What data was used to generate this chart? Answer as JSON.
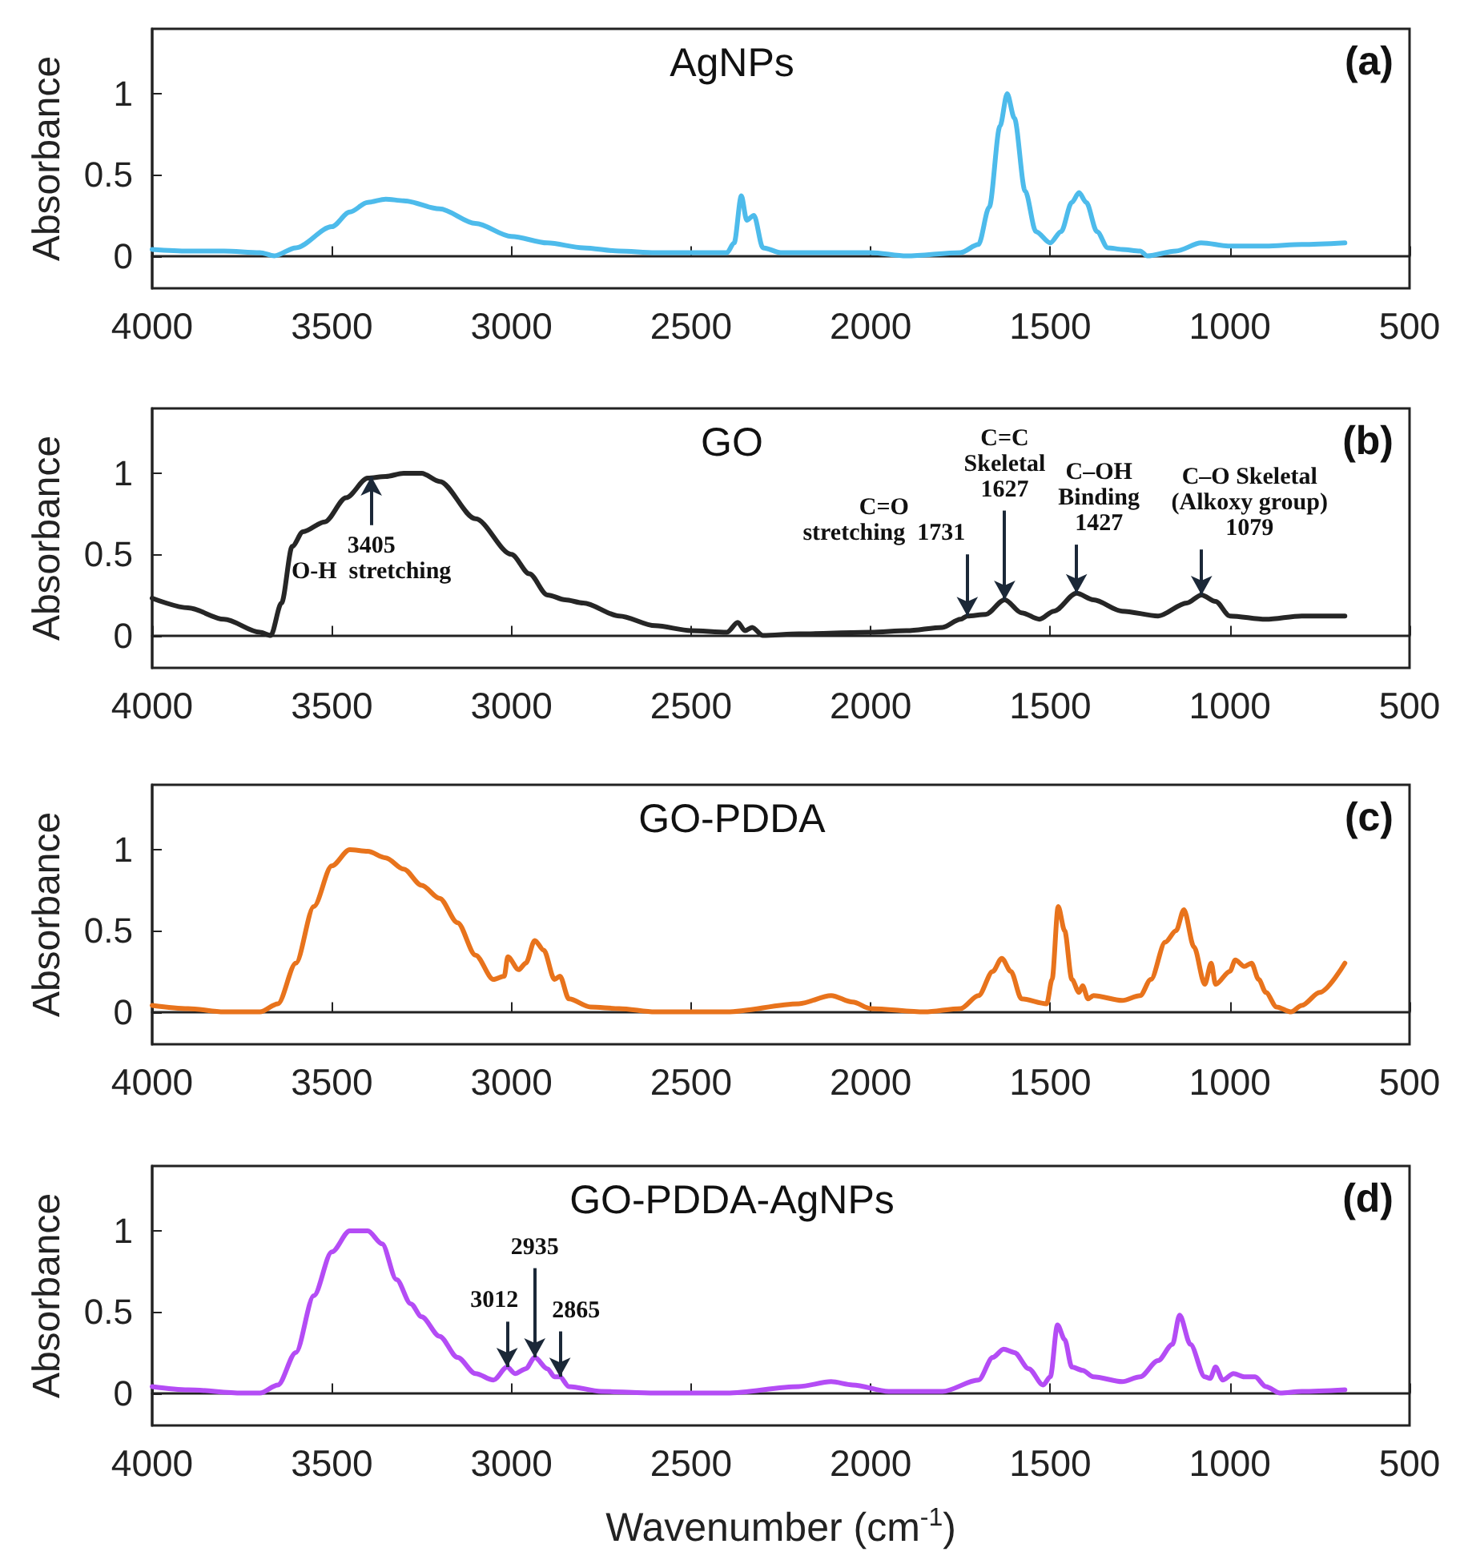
{
  "chart_data": [
    {
      "type": "line",
      "title": "AgNPs",
      "ylabel": "Absorbance",
      "annotations": [
        "(a)"
      ],
      "xlim": [
        4000,
        500
      ],
      "xticks": [
        4000,
        3500,
        3000,
        2500,
        2000,
        1500,
        1000,
        500
      ],
      "ylim": [
        -0.2,
        1.4
      ],
      "yticks": [
        0,
        0.5,
        1
      ],
      "x": [
        4000,
        3900,
        3800,
        3700,
        3660,
        3600,
        3500,
        3450,
        3400,
        3350,
        3300,
        3200,
        3100,
        3000,
        2900,
        2800,
        2700,
        2600,
        2400,
        2380,
        2360,
        2345,
        2325,
        2300,
        2250,
        2000,
        1900,
        1750,
        1700,
        1670,
        1640,
        1620,
        1600,
        1570,
        1540,
        1500,
        1470,
        1440,
        1420,
        1400,
        1370,
        1340,
        1300,
        1250,
        1230,
        1150,
        1080,
        1000,
        900,
        800,
        680
      ],
      "series": [
        {
          "color": "#4dbbeb",
          "values": [
            0.04,
            0.03,
            0.03,
            0.02,
            0.0,
            0.05,
            0.18,
            0.27,
            0.33,
            0.35,
            0.34,
            0.29,
            0.2,
            0.12,
            0.08,
            0.05,
            0.03,
            0.02,
            0.02,
            0.08,
            0.37,
            0.22,
            0.25,
            0.05,
            0.02,
            0.02,
            0.0,
            0.02,
            0.07,
            0.3,
            0.8,
            1.0,
            0.85,
            0.4,
            0.15,
            0.08,
            0.15,
            0.33,
            0.39,
            0.33,
            0.15,
            0.05,
            0.04,
            0.03,
            0.0,
            0.03,
            0.08,
            0.06,
            0.06,
            0.07,
            0.08
          ]
        }
      ]
    },
    {
      "type": "line",
      "title": "GO",
      "ylabel": "Absorbance",
      "annotations": [
        "(b)",
        {
          "text": "3405\nO-H  stretching",
          "x": 3390,
          "y": 0.98
        },
        {
          "text": "C=O\nstretching  1731",
          "x": 1731,
          "y": 0.12
        },
        {
          "text": "C=C\nSkeletal\n1627",
          "x": 1627,
          "y": 0.22
        },
        {
          "text": "C–OH\nBinding\n1427",
          "x": 1427,
          "y": 0.26
        },
        {
          "text": "C–O Skeletal\n(Alkoxy group)\n1079",
          "x": 1079,
          "y": 0.25
        }
      ],
      "xlim": [
        4000,
        500
      ],
      "xticks": [
        4000,
        3500,
        3000,
        2500,
        2000,
        1500,
        1000,
        500
      ],
      "ylim": [
        -0.2,
        1.4
      ],
      "yticks": [
        0,
        0.5,
        1
      ],
      "x": [
        4000,
        3900,
        3800,
        3700,
        3670,
        3640,
        3610,
        3580,
        3520,
        3460,
        3400,
        3350,
        3300,
        3250,
        3200,
        3100,
        3000,
        2950,
        2900,
        2850,
        2800,
        2700,
        2600,
        2500,
        2400,
        2370,
        2350,
        2330,
        2300,
        2200,
        2000,
        1900,
        1800,
        1750,
        1731,
        1680,
        1627,
        1580,
        1530,
        1490,
        1427,
        1380,
        1300,
        1200,
        1120,
        1079,
        1040,
        1000,
        900,
        800,
        680
      ],
      "series": [
        {
          "color": "#262626",
          "values": [
            0.23,
            0.17,
            0.1,
            0.02,
            0.0,
            0.2,
            0.55,
            0.64,
            0.7,
            0.85,
            0.97,
            0.98,
            1.0,
            1.0,
            0.95,
            0.72,
            0.5,
            0.38,
            0.25,
            0.22,
            0.2,
            0.12,
            0.06,
            0.03,
            0.02,
            0.08,
            0.03,
            0.05,
            0.0,
            0.01,
            0.02,
            0.03,
            0.05,
            0.1,
            0.12,
            0.13,
            0.22,
            0.14,
            0.1,
            0.15,
            0.26,
            0.22,
            0.15,
            0.12,
            0.2,
            0.25,
            0.21,
            0.12,
            0.1,
            0.12,
            0.12
          ]
        }
      ]
    },
    {
      "type": "line",
      "title": "GO-PDDA",
      "ylabel": "Absorbance",
      "annotations": [
        "(c)"
      ],
      "xlim": [
        4000,
        500
      ],
      "xticks": [
        4000,
        3500,
        3000,
        2500,
        2000,
        1500,
        1000,
        500
      ],
      "ylim": [
        -0.2,
        1.4
      ],
      "yticks": [
        0,
        0.5,
        1
      ],
      "x": [
        4000,
        3900,
        3800,
        3700,
        3650,
        3600,
        3550,
        3500,
        3450,
        3400,
        3350,
        3300,
        3250,
        3200,
        3150,
        3100,
        3050,
        3020,
        3010,
        2980,
        2960,
        2935,
        2910,
        2880,
        2865,
        2840,
        2780,
        2700,
        2600,
        2400,
        2200,
        2110,
        2050,
        2000,
        1850,
        1750,
        1700,
        1660,
        1635,
        1610,
        1580,
        1510,
        1495,
        1478,
        1460,
        1440,
        1420,
        1410,
        1395,
        1380,
        1300,
        1250,
        1220,
        1180,
        1150,
        1128,
        1100,
        1070,
        1052,
        1040,
        1000,
        985,
        960,
        940,
        920,
        900,
        870,
        830,
        800,
        750,
        680
      ],
      "series": [
        {
          "color": "#e8731c",
          "values": [
            0.04,
            0.02,
            0.0,
            0.0,
            0.05,
            0.3,
            0.65,
            0.9,
            1.0,
            0.99,
            0.95,
            0.88,
            0.78,
            0.7,
            0.55,
            0.35,
            0.2,
            0.22,
            0.34,
            0.26,
            0.3,
            0.44,
            0.38,
            0.2,
            0.22,
            0.08,
            0.03,
            0.02,
            0.0,
            0.0,
            0.05,
            0.1,
            0.06,
            0.02,
            0.0,
            0.02,
            0.1,
            0.25,
            0.33,
            0.25,
            0.08,
            0.05,
            0.2,
            0.65,
            0.5,
            0.2,
            0.12,
            0.16,
            0.08,
            0.1,
            0.07,
            0.1,
            0.2,
            0.43,
            0.5,
            0.63,
            0.4,
            0.17,
            0.3,
            0.17,
            0.25,
            0.32,
            0.28,
            0.3,
            0.2,
            0.12,
            0.03,
            0.0,
            0.04,
            0.12,
            0.3
          ]
        }
      ]
    },
    {
      "type": "line",
      "title": "GO-PDDA-AgNPs",
      "ylabel": "Absorbance",
      "xlabel": "Wavenumber (cm$^{-1}$)",
      "annotations": [
        "(d)",
        {
          "text": "3012",
          "x": 3012,
          "y": 0.16
        },
        {
          "text": "2935",
          "x": 2935,
          "y": 0.22
        },
        {
          "text": "2865",
          "x": 2865,
          "y": 0.1
        }
      ],
      "xlim": [
        4000,
        500
      ],
      "xticks": [
        4000,
        3500,
        3000,
        2500,
        2000,
        1500,
        1000,
        500
      ],
      "ylim": [
        -0.2,
        1.4
      ],
      "yticks": [
        0,
        0.5,
        1
      ],
      "x": [
        4000,
        3900,
        3750,
        3700,
        3650,
        3600,
        3550,
        3500,
        3450,
        3400,
        3360,
        3320,
        3280,
        3250,
        3200,
        3150,
        3100,
        3050,
        3012,
        2990,
        2960,
        2935,
        2900,
        2880,
        2865,
        2840,
        2750,
        2600,
        2400,
        2200,
        2110,
        2050,
        1950,
        1800,
        1700,
        1660,
        1630,
        1600,
        1560,
        1520,
        1500,
        1480,
        1460,
        1440,
        1410,
        1380,
        1300,
        1250,
        1200,
        1160,
        1140,
        1110,
        1070,
        1055,
        1040,
        1020,
        990,
        960,
        930,
        900,
        860,
        800,
        680
      ],
      "series": [
        {
          "color": "#b44cf5",
          "values": [
            0.04,
            0.02,
            0.0,
            0.0,
            0.05,
            0.25,
            0.6,
            0.87,
            1.0,
            1.0,
            0.92,
            0.7,
            0.55,
            0.47,
            0.35,
            0.22,
            0.12,
            0.08,
            0.16,
            0.12,
            0.15,
            0.22,
            0.15,
            0.1,
            0.1,
            0.04,
            0.01,
            0.0,
            0.0,
            0.04,
            0.07,
            0.05,
            0.01,
            0.01,
            0.08,
            0.22,
            0.27,
            0.25,
            0.15,
            0.05,
            0.1,
            0.42,
            0.33,
            0.16,
            0.14,
            0.1,
            0.07,
            0.1,
            0.2,
            0.3,
            0.48,
            0.3,
            0.1,
            0.09,
            0.16,
            0.08,
            0.12,
            0.1,
            0.1,
            0.04,
            0.0,
            0.01,
            0.02
          ]
        }
      ]
    }
  ]
}
